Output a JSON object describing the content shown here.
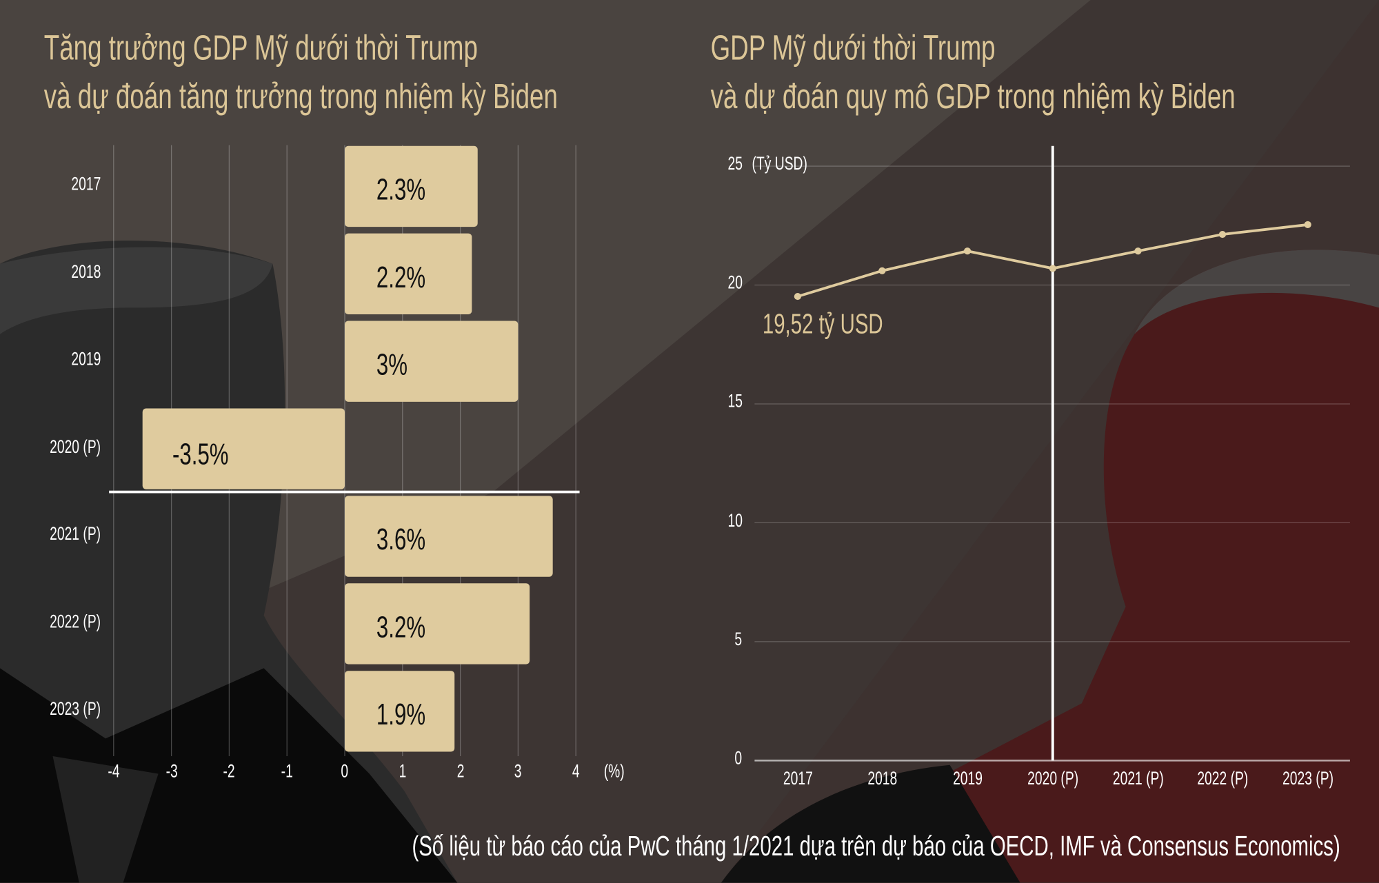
{
  "colors": {
    "background": "#3d3533",
    "bar": "#dfcb9e",
    "line": "#dfcb9e",
    "title": "#dcc697",
    "separator": "#ffffff",
    "biden_tint": "#5a1a1c"
  },
  "left_chart_title": [
    "Tăng trưởng GDP Mỹ dưới thời Trump",
    "và dự đoán tăng trưởng trong nhiệm kỳ Biden"
  ],
  "right_chart_title": [
    "GDP Mỹ dưới thời Trump",
    "và dự đoán quy mô GDP trong nhiệm kỳ Biden"
  ],
  "source": "(Số liệu từ báo cáo của PwC tháng 1/2021 dựa trên dự báo của OECD, IMF và Consensus Economics)",
  "chart_data": [
    {
      "type": "bar",
      "orientation": "horizontal",
      "categories": [
        "2017",
        "2018",
        "2019",
        "2020 (P)",
        "2021 (P)",
        "2022 (P)",
        "2023 (P)"
      ],
      "values": [
        2.3,
        2.2,
        3,
        -3.5,
        3.6,
        3.2,
        1.9
      ],
      "data_labels": [
        "2.3%",
        "2.2%",
        "3%",
        "-3.5%",
        "3.6%",
        "3.2%",
        "1.9%"
      ],
      "xlim": [
        -4,
        4
      ],
      "x_ticks": [
        "-4",
        "-3",
        "-2",
        "-1",
        "0",
        "1",
        "2",
        "3",
        "4"
      ],
      "xlabel": "(%)",
      "grid": true,
      "separator_after": "2020 (P)"
    },
    {
      "type": "line",
      "x": [
        "2017",
        "2018",
        "2019",
        "2020 (P)",
        "2021 (P)",
        "2022 (P)",
        "2023 (P)"
      ],
      "values": [
        19.52,
        20.6,
        21.43,
        20.7,
        21.43,
        22.13,
        22.54
      ],
      "ylim": [
        0,
        25
      ],
      "y_ticks": [
        "0",
        "5",
        "10",
        "15",
        "20",
        "25"
      ],
      "ylabel": "(Tỷ USD)",
      "annotation": "19,52 tỷ USD",
      "grid": true,
      "marker_line_at": "2020 (P)"
    }
  ]
}
